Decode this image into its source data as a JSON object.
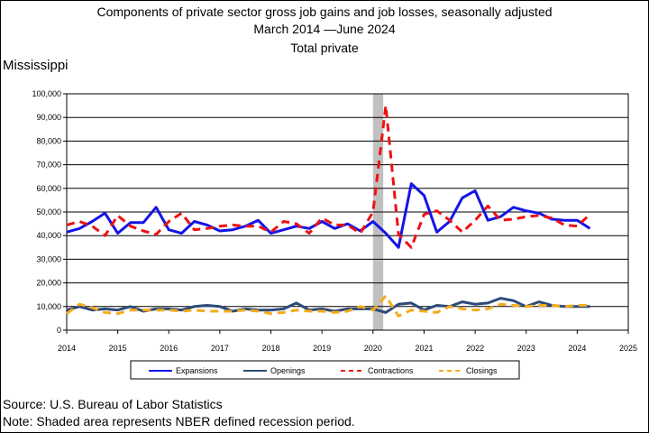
{
  "header": {
    "title_line1": "Components of private sector gross job gains and job losses, seasonally adjusted",
    "title_line2": "March 2014  —June 2024",
    "title_line3": "Total private",
    "state": "Mississippi"
  },
  "footer": {
    "source": "Source: U.S. Bureau of Labor Statistics",
    "note": "Note: Shaded area represents NBER defined recession period."
  },
  "colors": {
    "Expansions": "#1414e6",
    "Openings": "#2e4a78",
    "Contractions": "#ee1111",
    "Closings": "#f4ac1c",
    "recession": "#c0c0c0"
  },
  "chart_data": {
    "type": "line",
    "title": "Components of private sector gross job gains and job losses, seasonally adjusted",
    "xlabel": "",
    "ylabel": "",
    "xlim": [
      2014,
      2025
    ],
    "ylim": [
      0,
      100000
    ],
    "x_ticks": [
      "2014",
      "2015",
      "2016",
      "2017",
      "2018",
      "2019",
      "2020",
      "2021",
      "2022",
      "2023",
      "2024",
      "2025"
    ],
    "y_ticks": [
      "0",
      "10,000",
      "20,000",
      "30,000",
      "40,000",
      "50,000",
      "60,000",
      "70,000",
      "80,000",
      "90,000",
      "100,000"
    ],
    "grid": "horizontal",
    "legend_position": "bottom",
    "recession": {
      "start": 2020.0,
      "end": 2020.2
    },
    "x": [
      2014.0,
      2014.25,
      2014.5,
      2014.75,
      2015.0,
      2015.25,
      2015.5,
      2015.75,
      2016.0,
      2016.25,
      2016.5,
      2016.75,
      2017.0,
      2017.25,
      2017.5,
      2017.75,
      2018.0,
      2018.25,
      2018.5,
      2018.75,
      2019.0,
      2019.25,
      2019.5,
      2019.75,
      2020.0,
      2020.25,
      2020.5,
      2020.75,
      2021.0,
      2021.25,
      2021.5,
      2021.75,
      2022.0,
      2022.25,
      2022.5,
      2022.75,
      2023.0,
      2023.25,
      2023.5,
      2023.75,
      2024.0,
      2024.25
    ],
    "series": [
      {
        "name": "Expansions",
        "style": "solid",
        "values": [
          41500,
          43000,
          46000,
          49500,
          41000,
          45500,
          45500,
          52000,
          42500,
          41000,
          46000,
          44500,
          42000,
          42500,
          44000,
          46500,
          41000,
          42500,
          44000,
          43000,
          46000,
          43000,
          45000,
          42000,
          46000,
          41000,
          35000,
          62000,
          57000,
          41500,
          46000,
          56000,
          59000,
          46500,
          48000,
          52000,
          50500,
          49500,
          47000,
          46500,
          46500,
          43000
        ]
      },
      {
        "name": "Openings",
        "style": "solid",
        "values": [
          8500,
          10000,
          8500,
          9000,
          8500,
          10000,
          8000,
          9000,
          9000,
          8500,
          10000,
          10500,
          10000,
          8000,
          9000,
          8500,
          8500,
          9000,
          11500,
          8500,
          9000,
          8000,
          9000,
          9000,
          9000,
          7500,
          11000,
          11500,
          8500,
          10500,
          10000,
          12000,
          11000,
          11500,
          13500,
          12500,
          10000,
          12000,
          10500,
          10000,
          10000,
          10000
        ]
      },
      {
        "name": "Contractions",
        "style": "dash",
        "values": [
          44500,
          46000,
          44000,
          40000,
          48500,
          44000,
          42000,
          40500,
          46000,
          49500,
          42500,
          43000,
          44000,
          44500,
          44000,
          44000,
          41500,
          46000,
          45000,
          41000,
          47500,
          44500,
          44500,
          41000,
          50000,
          95000,
          40500,
          35000,
          49000,
          50500,
          46500,
          41500,
          46500,
          52500,
          46500,
          47000,
          48000,
          48500,
          47500,
          44500,
          44000,
          49000
        ]
      },
      {
        "name": "Closings",
        "style": "dash",
        "values": [
          7000,
          11000,
          9500,
          7500,
          7000,
          8500,
          8500,
          8500,
          8500,
          8000,
          8500,
          8000,
          8000,
          8000,
          8500,
          8000,
          7000,
          7500,
          8500,
          8000,
          8000,
          7500,
          8000,
          10000,
          8500,
          14500,
          6000,
          8500,
          8000,
          7500,
          10000,
          9000,
          8500,
          9000,
          11000,
          10500,
          10000,
          10500,
          10500,
          10000,
          10500,
          10500
        ]
      }
    ]
  }
}
